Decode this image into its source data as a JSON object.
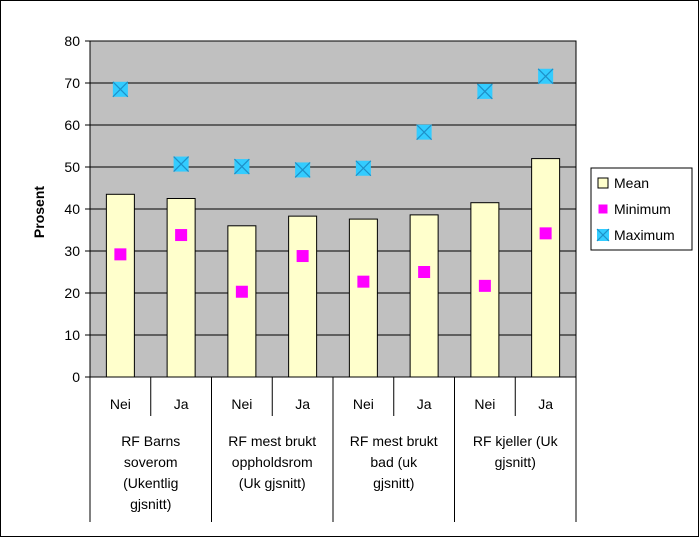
{
  "chart_data": {
    "type": "bar",
    "ylabel": "Prosent",
    "ylim": [
      0,
      80
    ],
    "ytick_step": 10,
    "grid": true,
    "legend_position": "right",
    "categories": [
      {
        "group": "RF Barns soverom (Ukentlig gjsnitt)",
        "group_lines": [
          "RF Barns",
          "soverom",
          "(Ukentlig",
          "gjsnitt)"
        ],
        "label": "Nei"
      },
      {
        "group": "RF Barns soverom (Ukentlig gjsnitt)",
        "group_lines": [
          "RF Barns",
          "soverom",
          "(Ukentlig",
          "gjsnitt)"
        ],
        "label": "Ja"
      },
      {
        "group": "RF mest brukt oppholdsrom (Uk gjsnitt)",
        "group_lines": [
          "RF mest brukt",
          "oppholdsrom",
          "(Uk gjsnitt)"
        ],
        "label": "Nei"
      },
      {
        "group": "RF mest brukt oppholdsrom (Uk gjsnitt)",
        "group_lines": [
          "RF mest brukt",
          "oppholdsrom",
          "(Uk gjsnitt)"
        ],
        "label": "Ja"
      },
      {
        "group": "RF mest brukt bad (uk gjsnitt)",
        "group_lines": [
          "RF mest brukt",
          "bad (uk",
          "gjsnitt)"
        ],
        "label": "Nei"
      },
      {
        "group": "RF mest brukt bad (uk gjsnitt)",
        "group_lines": [
          "RF mest brukt",
          "bad (uk",
          "gjsnitt)"
        ],
        "label": "Ja"
      },
      {
        "group": "RF kjeller (Uk gjsnitt)",
        "group_lines": [
          "RF kjeller (Uk",
          "gjsnitt)"
        ],
        "label": "Nei"
      },
      {
        "group": "RF kjeller (Uk gjsnitt)",
        "group_lines": [
          "RF kjeller (Uk",
          "gjsnitt)"
        ],
        "label": "Ja"
      }
    ],
    "groups": [
      {
        "lines": [
          "RF Barns",
          "soverom",
          "(Ukentlig",
          "gjsnitt)"
        ]
      },
      {
        "lines": [
          "RF mest brukt",
          "oppholdsrom",
          "(Uk gjsnitt)"
        ]
      },
      {
        "lines": [
          "RF mest brukt",
          "bad (uk",
          "gjsnitt)"
        ]
      },
      {
        "lines": [
          "RF kjeller (Uk",
          "gjsnitt)"
        ]
      }
    ],
    "series": [
      {
        "name": "Mean",
        "kind": "bar",
        "color": "#FFFFCC",
        "values": [
          43.5,
          42.5,
          36.0,
          38.3,
          37.6,
          38.6,
          41.5,
          52.0
        ]
      },
      {
        "name": "Minimum",
        "kind": "marker-square",
        "color": "#FF00FF",
        "values": [
          29.2,
          33.8,
          20.3,
          28.8,
          22.7,
          25.0,
          21.7,
          34.2
        ]
      },
      {
        "name": "Maximum",
        "kind": "marker-x",
        "color": "#33CCFF",
        "values": [
          68.5,
          50.7,
          50.1,
          49.3,
          49.7,
          58.3,
          68.0,
          71.6
        ]
      }
    ],
    "colors": {
      "plot_background": "#C0C0C0",
      "gridline": "#000000",
      "bar_outline": "#000000"
    }
  }
}
